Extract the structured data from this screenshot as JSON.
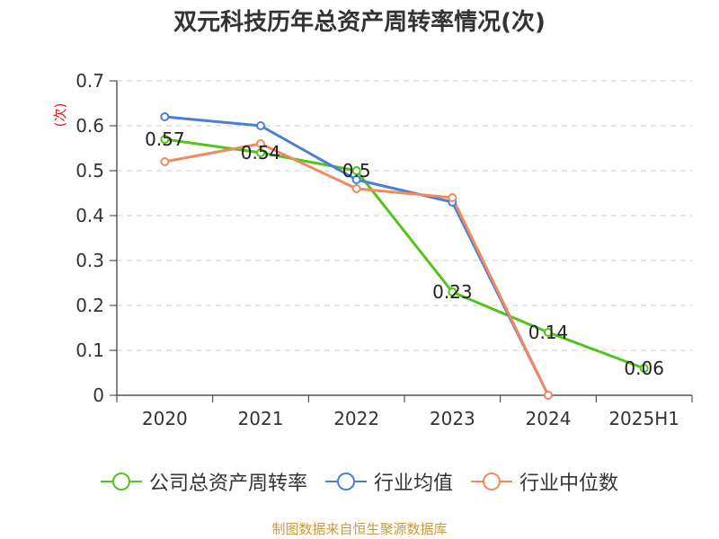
{
  "title": "双元科技历年总资产周转率情况(次)",
  "source": "制图数据来自恒生聚源数据库",
  "chart_data": {
    "type": "line",
    "title": "双元科技历年总资产周转率情况(次)",
    "ylabel": "(次)",
    "xlabel": "",
    "categories": [
      "2020",
      "2021",
      "2022",
      "2023",
      "2024",
      "2025H1"
    ],
    "ylim": [
      0,
      0.7
    ],
    "yticks": [
      "0",
      "0.1",
      "0.2",
      "0.3",
      "0.4",
      "0.5",
      "0.6",
      "0.7"
    ],
    "grid": true,
    "legend_position": "bottom",
    "series": [
      {
        "name": "公司总资产周转率",
        "color": "#52c41a",
        "values": [
          0.57,
          0.54,
          0.5,
          0.23,
          0.14,
          0.06
        ],
        "labels": [
          "0.57",
          "0.54",
          "0.5",
          "0.23",
          "0.14",
          "0.06"
        ]
      },
      {
        "name": "行业均值",
        "color": "#4a7fd4",
        "values": [
          0.62,
          0.6,
          0.48,
          0.43,
          0,
          null
        ]
      },
      {
        "name": "行业中位数",
        "color": "#f4895f",
        "values": [
          0.52,
          0.56,
          0.46,
          0.44,
          0,
          null
        ]
      }
    ]
  }
}
